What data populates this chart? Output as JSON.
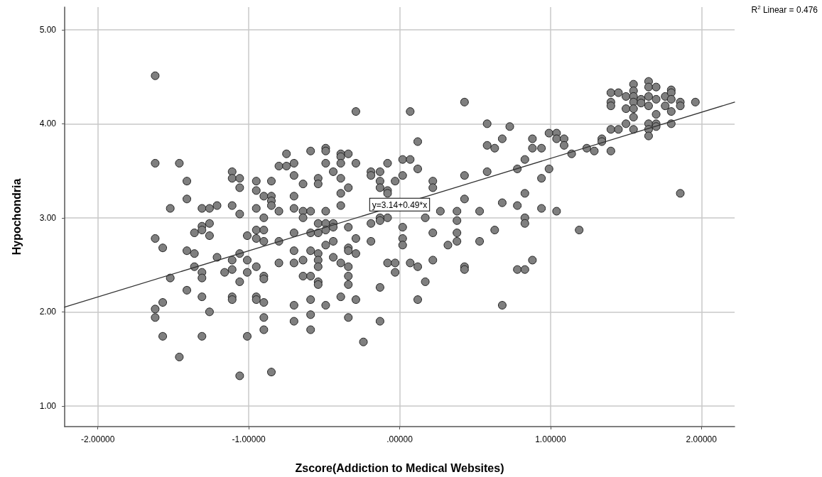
{
  "chart_data": {
    "type": "scatter",
    "xlabel": "Zscore(Addiction to Medical Websites)",
    "ylabel": "Hypochondria",
    "xlim": [
      -2.22,
      2.22
    ],
    "ylim": [
      0.78,
      5.24
    ],
    "xticks": [
      {
        "value": -2,
        "label": "-2.00000"
      },
      {
        "value": -1,
        "label": "-1.00000"
      },
      {
        "value": 0,
        "label": ".00000"
      },
      {
        "value": 1,
        "label": "1.00000"
      },
      {
        "value": 2,
        "label": "2.00000"
      }
    ],
    "yticks": [
      {
        "value": 1,
        "label": "1.00"
      },
      {
        "value": 2,
        "label": "2.00"
      },
      {
        "value": 3,
        "label": "3.00"
      },
      {
        "value": 4,
        "label": "4.00"
      },
      {
        "value": 5,
        "label": "5.00"
      }
    ],
    "grid": true,
    "marker": "circle",
    "annotations": [
      "R$^{2}$ Linear = 0.476",
      {
        "text": "y=3.14+0.49*x",
        "x": 0,
        "y": 3.14
      }
    ],
    "series": [
      {
        "color": "#7f7f7f",
        "x": [
          -1.62,
          -1.62,
          -1.46,
          -1.41,
          -1.41,
          -1.52,
          -1.31,
          -1.26,
          -1.21,
          -1.11,
          -1.11,
          -1.06,
          -1.06,
          -1.11,
          -1.06,
          -0.95,
          -0.95,
          -0.85,
          -0.9,
          -0.85,
          -0.85,
          -0.85,
          -0.95,
          -0.8,
          -0.9,
          -0.75,
          -0.8,
          -0.75,
          -1.62,
          -1.57,
          -1.36,
          -1.31,
          -1.31,
          -1.26,
          -1.26,
          -1.41,
          -1.36,
          -1.01,
          -0.95,
          -0.9,
          -0.95,
          -0.9,
          -0.8,
          -1.06,
          -1.21,
          -1.11,
          -1.01,
          -0.95,
          -0.9,
          -0.9,
          -0.8,
          -1.36,
          -1.31,
          -1.31,
          -1.16,
          -1.11,
          -1.01,
          -1.52,
          -1.06,
          -1.41,
          -1.31,
          -1.11,
          -1.11,
          -0.95,
          -0.95,
          -0.9,
          -1.57,
          -1.62,
          -1.62,
          -1.26,
          -0.9,
          -1.57,
          -1.31,
          -1.01,
          -0.9,
          -1.46,
          -1.06,
          -0.85,
          -0.29,
          0.07,
          0.43,
          0.58,
          0.73,
          0.68,
          0.58,
          0.63,
          0.12,
          0.58,
          0.43,
          0.02,
          0.07,
          0.12,
          0.02,
          -0.08,
          -0.03,
          -0.13,
          -0.19,
          -0.19,
          -0.13,
          -0.13,
          -0.08,
          -0.08,
          0.22,
          0.22,
          0.43,
          0.68,
          0.53,
          0.38,
          0.38,
          0.27,
          0.17,
          0.38,
          0.38,
          0.22,
          0.32,
          0.53,
          0.63,
          0.02,
          0.02,
          0.02,
          -0.08,
          -0.13,
          -0.13,
          -0.19,
          -0.29,
          -0.19,
          -0.34,
          -0.39,
          -0.39,
          -0.34,
          -0.39,
          -0.44,
          -0.39,
          -0.39,
          -0.34,
          -0.39,
          -0.29,
          -0.49,
          -0.49,
          -0.49,
          -0.59,
          -0.7,
          -0.7,
          -0.54,
          -0.54,
          -0.64,
          -0.7,
          -0.7,
          -0.64,
          -0.59,
          -0.64,
          -0.49,
          -0.54,
          -0.49,
          -0.49,
          -0.44,
          -0.44,
          -0.7,
          -0.59,
          -0.54,
          -0.44,
          -0.49,
          -0.34,
          -0.34,
          -0.7,
          -0.59,
          -0.54,
          -0.29,
          -0.54,
          -0.54,
          -0.7,
          -0.64,
          -0.44,
          -0.39,
          -0.34,
          -0.34,
          -0.34,
          -0.64,
          -0.59,
          -0.54,
          -0.54,
          -0.39,
          -0.29,
          -0.59,
          -0.7,
          -0.49,
          -0.59,
          -0.7,
          -0.59,
          -0.34,
          -0.13,
          -0.13,
          -0.24,
          -0.08,
          -0.03,
          -0.03,
          0.07,
          0.12,
          0.22,
          0.17,
          0.12,
          0.43,
          0.43,
          0.68,
          0.88,
          0.88,
          0.94,
          0.99,
          1.04,
          1.04,
          1.09,
          1.09,
          0.83,
          0.78,
          0.99,
          0.94,
          0.83,
          0.78,
          0.94,
          1.04,
          0.83,
          0.83,
          1.19,
          1.14,
          1.24,
          1.29,
          1.34,
          1.34,
          1.4,
          1.4,
          1.45,
          1.5,
          1.55,
          1.55,
          1.65,
          1.65,
          1.65,
          1.7,
          1.7,
          1.7,
          1.8,
          1.8,
          1.86,
          1.4,
          1.4,
          1.4,
          1.45,
          1.5,
          1.5,
          1.55,
          1.55,
          1.55,
          1.55,
          1.55,
          1.6,
          1.6,
          1.65,
          1.65,
          1.65,
          1.65,
          1.7,
          1.7,
          1.76,
          1.76,
          1.8,
          1.8,
          1.8,
          1.86,
          1.86,
          1.96,
          0.78,
          0.83,
          0.88
        ],
        "values": [
          4.51,
          3.58,
          3.58,
          3.39,
          3.2,
          3.1,
          3.1,
          3.1,
          3.13,
          3.49,
          3.42,
          3.42,
          3.32,
          3.13,
          3.04,
          3.39,
          3.29,
          3.39,
          3.23,
          3.23,
          3.18,
          3.13,
          3.1,
          3.07,
          3.0,
          3.68,
          3.55,
          3.55,
          2.78,
          2.68,
          2.84,
          2.91,
          2.87,
          2.94,
          2.81,
          2.65,
          2.62,
          2.81,
          2.87,
          2.87,
          2.78,
          2.75,
          2.75,
          2.62,
          2.58,
          2.55,
          2.55,
          2.48,
          2.38,
          2.35,
          2.52,
          2.48,
          2.42,
          2.36,
          2.42,
          2.45,
          2.42,
          2.36,
          2.32,
          2.23,
          2.16,
          2.16,
          2.13,
          2.16,
          2.13,
          2.1,
          2.1,
          2.03,
          1.94,
          2.0,
          1.94,
          1.74,
          1.74,
          1.74,
          1.81,
          1.52,
          1.32,
          1.36,
          4.13,
          4.13,
          4.23,
          4.0,
          3.97,
          3.84,
          3.77,
          3.74,
          3.81,
          3.49,
          3.45,
          3.62,
          3.62,
          3.52,
          3.45,
          3.58,
          3.39,
          3.49,
          3.49,
          3.45,
          3.39,
          3.32,
          3.29,
          3.26,
          3.39,
          3.32,
          3.2,
          3.16,
          3.07,
          3.07,
          2.97,
          3.07,
          3.0,
          2.84,
          2.75,
          2.84,
          2.71,
          2.75,
          2.87,
          2.9,
          2.78,
          2.71,
          3.0,
          3.0,
          2.97,
          2.94,
          2.78,
          2.75,
          2.9,
          3.26,
          3.13,
          3.32,
          3.42,
          3.49,
          3.68,
          3.65,
          3.68,
          3.58,
          3.58,
          3.74,
          3.71,
          3.58,
          3.71,
          3.58,
          3.45,
          3.42,
          3.36,
          3.36,
          3.23,
          3.1,
          3.07,
          3.07,
          3.0,
          3.07,
          2.94,
          2.94,
          2.87,
          2.94,
          2.9,
          2.84,
          2.84,
          2.84,
          2.75,
          2.71,
          2.68,
          2.65,
          2.65,
          2.65,
          2.62,
          2.62,
          2.55,
          2.48,
          2.52,
          2.55,
          2.58,
          2.52,
          2.48,
          2.38,
          2.29,
          2.38,
          2.38,
          2.32,
          2.29,
          2.16,
          2.13,
          2.13,
          2.07,
          2.07,
          1.97,
          1.9,
          1.81,
          1.94,
          2.26,
          1.9,
          1.68,
          2.52,
          2.52,
          2.42,
          2.52,
          2.48,
          2.55,
          2.32,
          2.13,
          2.48,
          2.45,
          2.07,
          3.84,
          3.74,
          3.74,
          3.9,
          3.9,
          3.84,
          3.84,
          3.77,
          3.62,
          3.52,
          3.52,
          3.42,
          3.26,
          3.13,
          3.1,
          3.07,
          3.0,
          2.94,
          2.87,
          3.68,
          3.74,
          3.71,
          3.84,
          3.81,
          3.71,
          3.94,
          3.94,
          4.0,
          4.07,
          3.94,
          4.0,
          3.94,
          3.87,
          4.1,
          4.0,
          3.97,
          4.13,
          4.0,
          3.26,
          4.33,
          4.23,
          4.19,
          4.33,
          4.29,
          4.16,
          4.42,
          4.35,
          4.29,
          4.23,
          4.16,
          4.26,
          4.22,
          4.45,
          4.39,
          4.29,
          4.19,
          4.39,
          4.26,
          4.29,
          4.19,
          4.36,
          4.33,
          4.26,
          4.23,
          4.19,
          4.23,
          2.45,
          2.45,
          2.55
        ]
      },
      {
        "type": "line",
        "color": "#333333",
        "marker": "none",
        "x": [
          -2.22,
          2.22
        ],
        "values": [
          2.05,
          4.23
        ]
      }
    ]
  }
}
